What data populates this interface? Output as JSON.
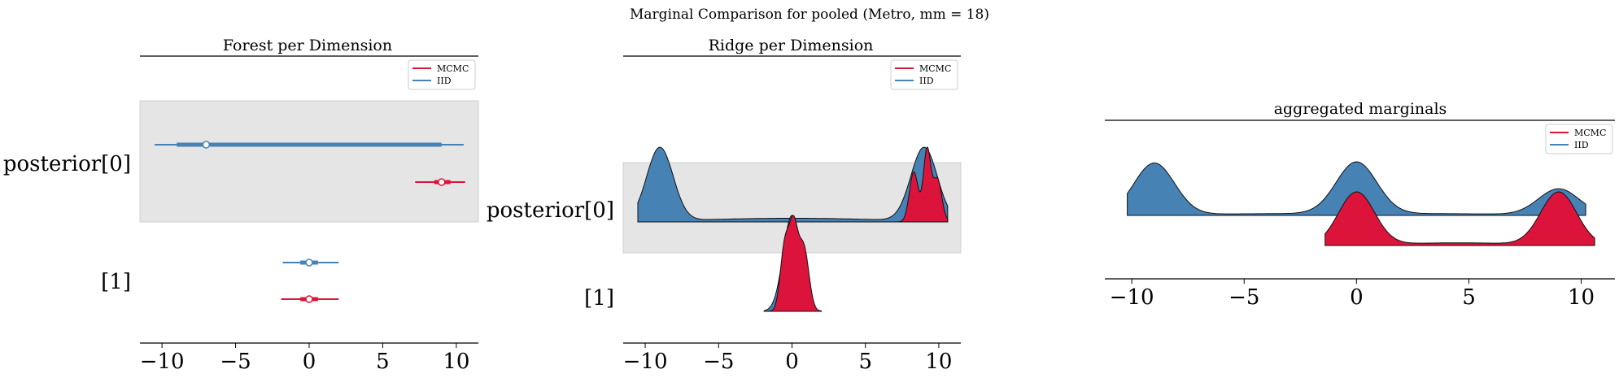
{
  "suptitle": "Marginal Comparison for pooled (Metro, mm = 18)",
  "colors": {
    "MCMC": "#dc143c",
    "IID": "#4682b4",
    "band": "#e5e5e5"
  },
  "chart_data": [
    {
      "type": "forest",
      "title": "Forest per Dimension",
      "xlim": [
        -11.5,
        11.5
      ],
      "xticks": [
        -10,
        -5,
        0,
        5,
        10
      ],
      "xtick_labels": [
        "−10",
        "−5",
        "0",
        "5",
        "10"
      ],
      "legend": {
        "entries": [
          "MCMC",
          "IID"
        ],
        "placement": "top-right"
      },
      "rows": [
        {
          "label": "posterior[0]",
          "shaded": true,
          "series": [
            {
              "name": "IID",
              "hdi94": [
                -10.5,
                10.5
              ],
              "iqr": [
                -9.0,
                9.0
              ],
              "median": -7.0
            },
            {
              "name": "MCMC",
              "hdi94": [
                7.2,
                10.6
              ],
              "iqr": [
                8.5,
                9.6
              ],
              "median": 9.0
            }
          ]
        },
        {
          "label": "[1]",
          "shaded": false,
          "series": [
            {
              "name": "IID",
              "hdi94": [
                -1.8,
                2.0
              ],
              "iqr": [
                -0.6,
                0.6
              ],
              "median": 0.0
            },
            {
              "name": "MCMC",
              "hdi94": [
                -1.9,
                2.0
              ],
              "iqr": [
                -0.6,
                0.6
              ],
              "median": 0.0
            }
          ]
        }
      ]
    },
    {
      "type": "ridge",
      "title": "Ridge per Dimension",
      "xlim": [
        -11.5,
        11.5
      ],
      "xticks": [
        -10,
        -5,
        0,
        5,
        10
      ],
      "xtick_labels": [
        "−10",
        "−5",
        "0",
        "5",
        "10"
      ],
      "legend": {
        "entries": [
          "MCMC",
          "IID"
        ],
        "placement": "top-right"
      },
      "rows": [
        {
          "label": "posterior[0]",
          "shaded": true,
          "series": [
            {
              "name": "IID",
              "range": [
                -10.5,
                10.6
              ],
              "peaks": [
                {
                  "mu": -9.0,
                  "sd": 0.9,
                  "w": 1.0
                },
                {
                  "mu": 9.0,
                  "sd": 0.9,
                  "w": 1.0
                },
                {
                  "mu": 0.0,
                  "sd": 6.0,
                  "w": 0.05
                }
              ]
            },
            {
              "name": "MCMC",
              "range": [
                7.2,
                10.6
              ],
              "peaks": [
                {
                  "mu": 8.3,
                  "sd": 0.3,
                  "w": 0.7
                },
                {
                  "mu": 9.2,
                  "sd": 0.25,
                  "w": 1.0
                },
                {
                  "mu": 9.9,
                  "sd": 0.3,
                  "w": 0.6
                }
              ]
            }
          ]
        },
        {
          "label": "[1]",
          "shaded": false,
          "series": [
            {
              "name": "IID",
              "range": [
                -1.9,
                2.0
              ],
              "peaks": [
                {
                  "mu": 0.0,
                  "sd": 0.6,
                  "w": 1.0
                }
              ]
            },
            {
              "name": "MCMC",
              "range": [
                -1.9,
                2.0
              ],
              "peaks": [
                {
                  "mu": -0.5,
                  "sd": 0.3,
                  "w": 0.8
                },
                {
                  "mu": 0.1,
                  "sd": 0.3,
                  "w": 1.0
                },
                {
                  "mu": 0.8,
                  "sd": 0.35,
                  "w": 0.8
                }
              ]
            }
          ]
        }
      ]
    },
    {
      "type": "ridge",
      "title": "aggregated marginals",
      "xlim": [
        -11.2,
        11.5
      ],
      "xticks": [
        -10,
        -5,
        0,
        5,
        10
      ],
      "xtick_labels": [
        "−10",
        "−5",
        "0",
        "5",
        "10"
      ],
      "legend": {
        "entries": [
          "MCMC",
          "IID"
        ],
        "placement": "top-right"
      },
      "rows": [
        {
          "label": "",
          "shaded": false,
          "series": [
            {
              "name": "IID",
              "range": [
                -10.2,
                10.2
              ],
              "peaks": [
                {
                  "mu": -9.0,
                  "sd": 0.9,
                  "w": 1.0
                },
                {
                  "mu": 0.0,
                  "sd": 0.9,
                  "w": 1.0
                },
                {
                  "mu": 9.0,
                  "sd": 0.9,
                  "w": 0.5
                },
                {
                  "mu": 0.0,
                  "sd": 7.0,
                  "w": 0.04
                }
              ]
            },
            {
              "name": "MCMC",
              "range": [
                -1.4,
                10.6
              ],
              "peaks": [
                {
                  "mu": 0.0,
                  "sd": 0.8,
                  "w": 1.0
                },
                {
                  "mu": 9.0,
                  "sd": 0.8,
                  "w": 1.0
                },
                {
                  "mu": 4.5,
                  "sd": 3.0,
                  "w": 0.05
                }
              ]
            }
          ]
        }
      ]
    }
  ]
}
